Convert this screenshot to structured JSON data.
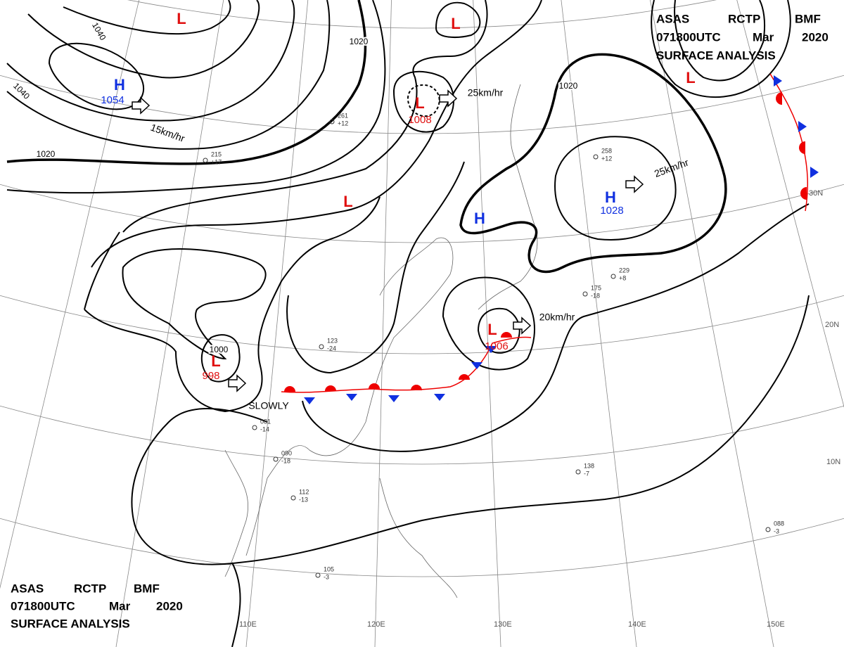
{
  "header": {
    "line1": [
      "ASAS",
      "RCTP",
      "BMF"
    ],
    "line2": [
      "071800UTC",
      "Mar",
      "2020"
    ],
    "line3": "SURFACE ANALYSIS"
  },
  "centers": [
    {
      "symbol": "H",
      "pressure": 1054
    },
    {
      "symbol": "L"
    },
    {
      "symbol": "L",
      "pressure": 1008
    },
    {
      "symbol": "L"
    },
    {
      "symbol": "L"
    },
    {
      "symbol": "H"
    },
    {
      "symbol": "H",
      "pressure": 1028
    },
    {
      "symbol": "L",
      "pressure": 998
    },
    {
      "symbol": "L",
      "pressure": 1006
    },
    {
      "symbol": "L"
    }
  ],
  "isobar_labels": [
    1040,
    1040,
    1020,
    1020,
    1020,
    1000
  ],
  "motions": [
    "15km/hr",
    "25km/hr",
    "25km/hr",
    "20km/hr",
    "SLOWLY"
  ],
  "graticule": {
    "latitudes": [
      "30N",
      "20N",
      "10N"
    ],
    "longitudes": [
      "110E",
      "120E",
      "130E",
      "140E",
      "150E"
    ]
  },
  "stations": [
    {
      "pressure": "215",
      "tendency": "+17"
    },
    {
      "pressure": "261",
      "tendency": "+12"
    },
    {
      "pressure": "258",
      "tendency": "+12"
    },
    {
      "pressure": "229",
      "tendency": "+8"
    },
    {
      "pressure": "175",
      "tendency": "-18"
    },
    {
      "pressure": "123",
      "tendency": "-24"
    },
    {
      "pressure": "081",
      "tendency": "-14"
    },
    {
      "pressure": "090",
      "tendency": "-18"
    },
    {
      "pressure": "112",
      "tendency": "-13"
    },
    {
      "pressure": "138",
      "tendency": "-7"
    },
    {
      "pressure": "088",
      "tendency": "-3"
    },
    {
      "pressure": "105",
      "tendency": "-3"
    }
  ]
}
